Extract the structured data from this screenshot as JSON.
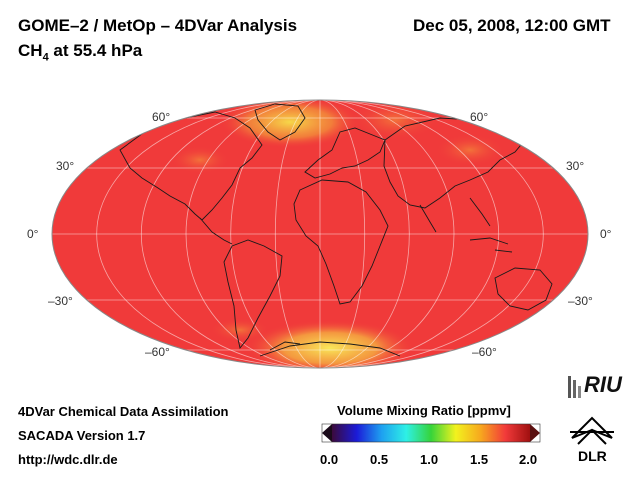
{
  "header": {
    "title": "GOME–2 / MetOp – 4DVar Analysis",
    "species_main": "CH",
    "species_sub": "4",
    "species_rest": " at 55.4 hPa",
    "datetime": "Dec 05, 2008, 12:00 GMT"
  },
  "map": {
    "projection": "Mollweide",
    "lat_labels_left": [
      "60°",
      "30°",
      "0°",
      "–30°",
      "–60°"
    ],
    "lat_labels_right": [
      "60°",
      "30°",
      "0°",
      "–30°",
      "–60°"
    ],
    "field_color": "#f03a3a",
    "high_color": "#f7e04a",
    "mid_color": "#f08a3a"
  },
  "footer": {
    "line1": "4DVar Chemical Data Assimilation",
    "line2": "SACADA Version 1.7",
    "line3": "http://wdc.dlr.de"
  },
  "colorbar": {
    "title": "Volume Mixing Ratio [ppmv]",
    "ticks": [
      "0.0",
      "0.5",
      "1.0",
      "1.5",
      "2.0"
    ],
    "stops": [
      "#3b0a3b",
      "#1b1bd8",
      "#1ea0f0",
      "#2ef0e6",
      "#36d43a",
      "#f2f21e",
      "#f7a81e",
      "#f23a3a",
      "#a01010"
    ]
  },
  "logos": {
    "riu": "RIU",
    "dlr": "DLR"
  }
}
